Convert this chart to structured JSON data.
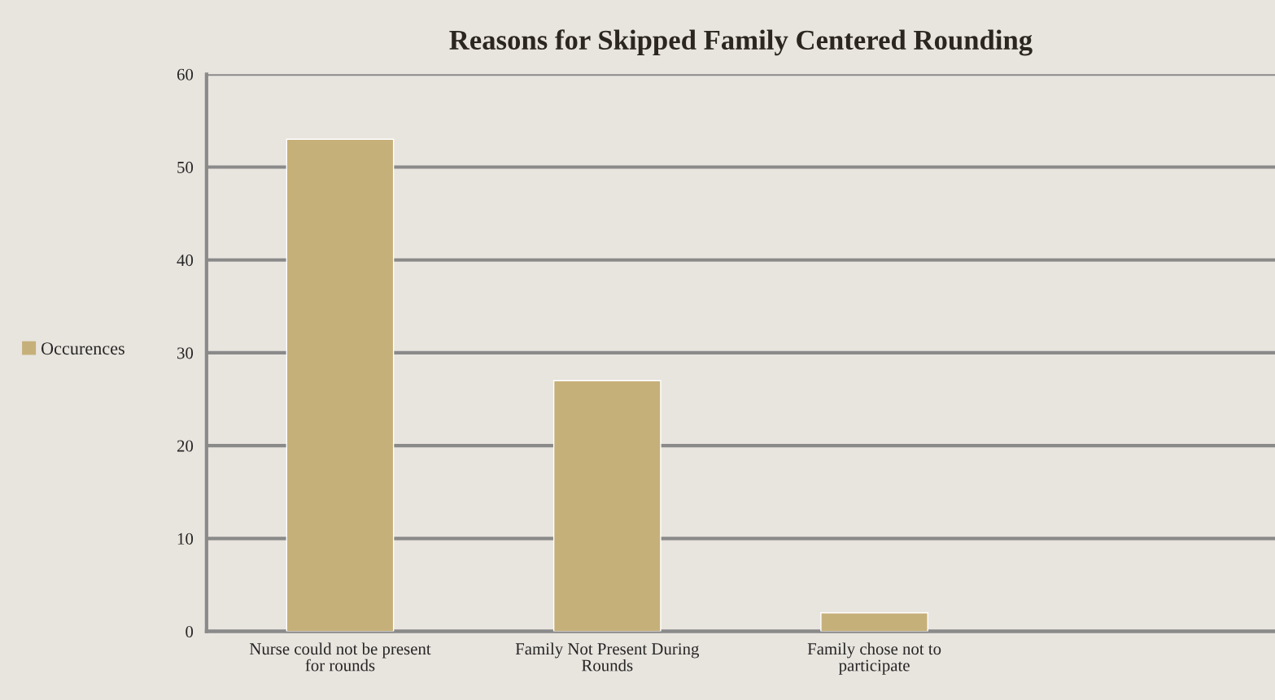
{
  "chart_data": {
    "type": "bar",
    "title": "Reasons for Skipped Family Centered Rounding",
    "categories": [
      "Nurse could not be present for rounds",
      "Family Not Present During Rounds",
      "Family chose not to participate",
      null
    ],
    "series": [
      {
        "name": "Occurences",
        "color": "#c6b07a",
        "values": [
          53,
          27,
          2,
          null
        ]
      }
    ],
    "ylim": [
      0,
      60
    ],
    "yticks": [
      0,
      10,
      20,
      30,
      40,
      50,
      60
    ],
    "grid": "y",
    "legend": "left"
  }
}
